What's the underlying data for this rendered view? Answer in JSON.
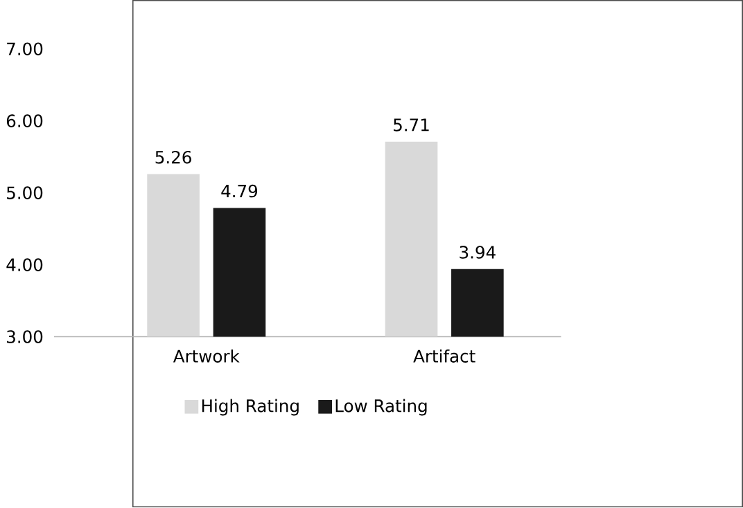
{
  "chart_data": {
    "type": "bar",
    "categories": [
      "Artwork",
      "Artifact"
    ],
    "series": [
      {
        "name": "High Rating",
        "color": "#d9d9d9",
        "values": [
          5.26,
          5.71
        ],
        "value_labels": [
          "5.26",
          "5.71"
        ]
      },
      {
        "name": "Low Rating",
        "color": "#1a1a1a",
        "values": [
          4.79,
          3.94
        ],
        "value_labels": [
          "4.79",
          "3.94"
        ]
      }
    ],
    "ylim": [
      3,
      7
    ],
    "yticks": [
      {
        "value": 3,
        "label": "3.00"
      },
      {
        "value": 4,
        "label": "4.00"
      },
      {
        "value": 5,
        "label": "5.00"
      },
      {
        "value": 6,
        "label": "6.00"
      },
      {
        "value": 7,
        "label": "7.00"
      }
    ],
    "grid": false,
    "legend": "bottom"
  }
}
